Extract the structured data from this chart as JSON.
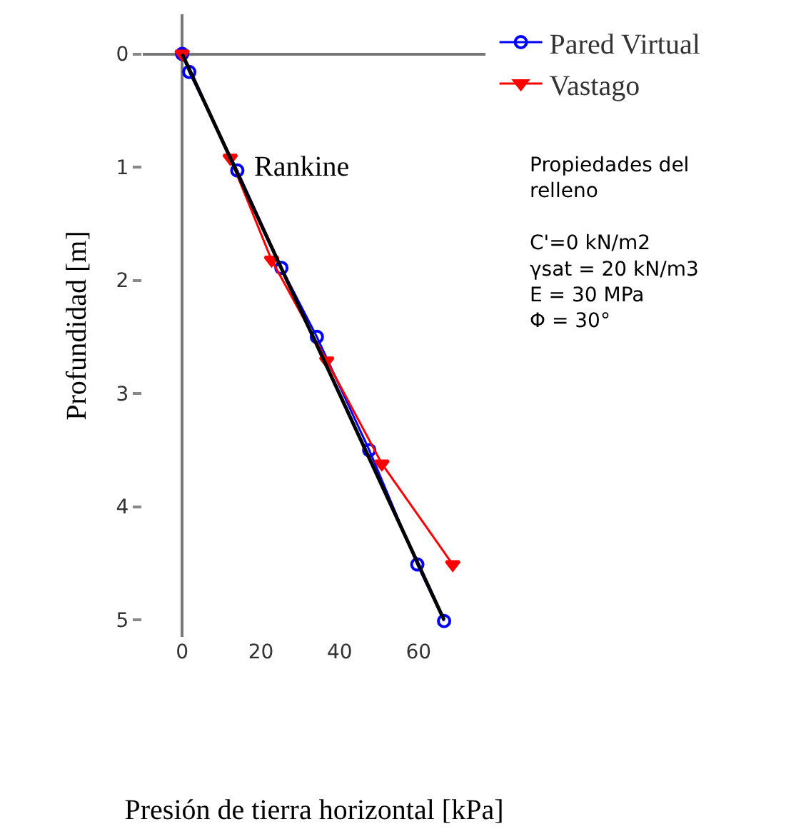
{
  "chart_data": {
    "type": "line",
    "xlabel": "Presión de tierra horizontal [kPa]",
    "ylabel": "Profundidad [m]",
    "xlim": [
      -10,
      77
    ],
    "ylim": [
      5.15,
      -0.35
    ],
    "xticks": [
      0,
      20,
      40,
      60
    ],
    "yticks": [
      0,
      1,
      2,
      3,
      4,
      5
    ],
    "legend": "top right",
    "series": [
      {
        "name": "Pared Virtual",
        "color": "#0000ff",
        "marker": "circle",
        "x": [
          0,
          1.8,
          14,
          25.2,
          34.2,
          47.5,
          59.7,
          66.5
        ],
        "values": [
          0,
          0.16,
          1.03,
          1.89,
          2.5,
          3.5,
          4.51,
          5.01
        ]
      },
      {
        "name": "Vastago",
        "color": "#ff0000",
        "marker": "triangle",
        "x": [
          0,
          12.2,
          22.7,
          36.7,
          50.7,
          68.7
        ],
        "values": [
          0,
          0.92,
          1.82,
          2.71,
          3.62,
          4.51
        ]
      },
      {
        "color": "#000000",
        "marker": "none",
        "x": [
          0,
          66.5
        ],
        "values": [
          0,
          5.0
        ]
      }
    ],
    "annotations": [
      {
        "text": "Rankine",
        "x": 14,
        "y": 1.0
      },
      "Propiedades del\nrelleno\n\nC'=0 kN/m2\nγsat = 20 kN/m3\nE = 30 MPa\nΦ = 30°"
    ]
  }
}
